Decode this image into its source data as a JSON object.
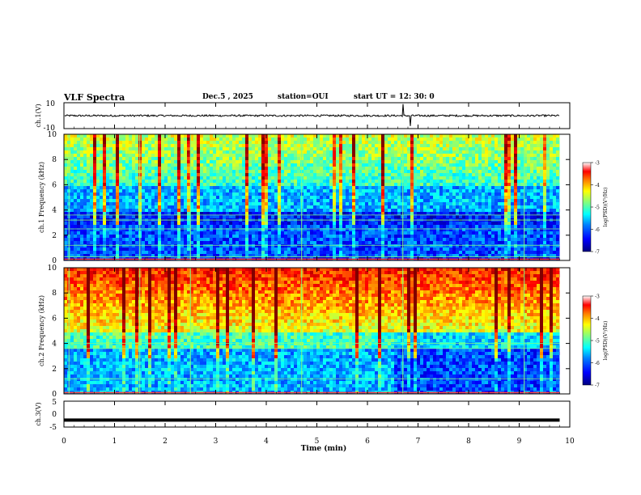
{
  "header": {
    "title": "VLF Spectra",
    "date": "Dec.5 , 2025",
    "station": "station=OUI",
    "start": "start UT = 12: 30: 0"
  },
  "chart_data": [
    {
      "type": "line",
      "panel": "ch1-waveform",
      "ylabel": "ch.1(V)",
      "ylim": [
        -10,
        10
      ],
      "yticks": [
        10,
        -10
      ],
      "xlim": [
        0,
        9.8
      ],
      "baseline": 0,
      "description_values": {
        "typical_amplitude": 1,
        "spike_times_min": [
          6.7,
          6.85
        ]
      }
    },
    {
      "type": "heatmap",
      "panel": "ch1-spectrogram",
      "ylabel": "ch.1 Frequency (kHz)",
      "ylim": [
        0,
        10
      ],
      "yticks": [
        0,
        2,
        4,
        6,
        8,
        10
      ],
      "xlim": [
        0,
        9.8
      ],
      "colorbar": {
        "label": "log(PSD)(V²/Hz)",
        "range": [
          -7,
          -3
        ],
        "ticks": [
          -3,
          -4,
          -5,
          -6,
          -7
        ]
      }
    },
    {
      "type": "heatmap",
      "panel": "ch2-spectrogram",
      "ylabel": "ch.2 Frequency (kHz)",
      "ylim": [
        0,
        10
      ],
      "yticks": [
        0,
        2,
        4,
        6,
        8,
        10
      ],
      "xlim": [
        0,
        9.8
      ],
      "colorbar": {
        "label": "log(PSD)(V²/Hz)",
        "range": [
          -7,
          -3
        ],
        "ticks": [
          -3,
          -4,
          -5,
          -6,
          -7
        ]
      }
    },
    {
      "type": "line",
      "panel": "ch3-waveform",
      "ylabel": "ch.3(V)",
      "ylim": [
        -5,
        5
      ],
      "yticks": [
        5,
        0,
        -5
      ],
      "xlim": [
        0,
        9.8
      ],
      "baseline": -2.3
    }
  ],
  "x_axis": {
    "label": "Time (min)",
    "range": [
      0,
      10
    ],
    "ticks": [
      0,
      1,
      2,
      3,
      4,
      5,
      6,
      7,
      8,
      9,
      10
    ]
  },
  "colors": {
    "cmap": [
      "#000080",
      "#0000ff",
      "#0080ff",
      "#00ffff",
      "#80ff80",
      "#ffff00",
      "#ff8000",
      "#ff0000",
      "#800000"
    ]
  }
}
